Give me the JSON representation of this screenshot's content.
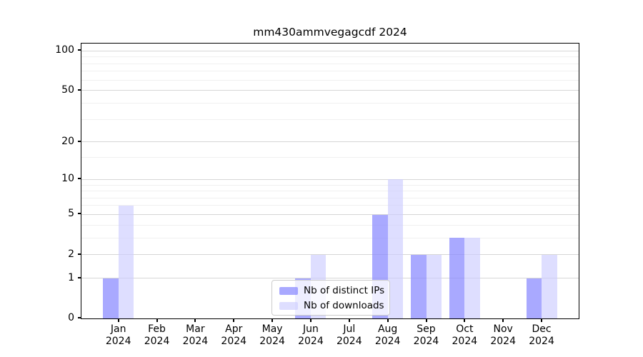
{
  "title": "mm430ammvegagcdf 2024",
  "chart_data": {
    "type": "bar",
    "title": "mm430ammvegagcdf 2024",
    "categories": [
      "Jan",
      "Feb",
      "Mar",
      "Apr",
      "May",
      "Jun",
      "Jul",
      "Aug",
      "Sep",
      "Oct",
      "Nov",
      "Dec"
    ],
    "year_label": "2024",
    "series": [
      {
        "name": "Nb of distinct IPs",
        "color": "rgba(136,136,255,0.72)",
        "values": [
          1,
          0,
          0,
          0,
          0,
          1,
          0,
          5,
          2,
          3,
          0,
          1
        ]
      },
      {
        "name": "Nb of downloads",
        "color": "rgba(204,204,255,0.65)",
        "values": [
          6,
          0,
          0,
          0,
          0,
          2,
          0,
          10,
          2,
          3,
          0,
          2
        ]
      }
    ],
    "xlabel": "",
    "ylabel": "",
    "yscale": "log1p",
    "ylim": [
      0,
      115
    ],
    "y_major_ticks": [
      0,
      1,
      2,
      5,
      10,
      20,
      50,
      100
    ],
    "y_minor_ticks": [
      3,
      4,
      6,
      7,
      8,
      9,
      15,
      30,
      40,
      60,
      70,
      80,
      90
    ],
    "grid": true,
    "legend_position": "lower center"
  },
  "style": {
    "grid_major_color": "#d6d6d6",
    "grid_minor_color": "#f0f0f0",
    "axis_color": "#000000",
    "text_color": "#000000",
    "background_color": "#ffffff"
  }
}
